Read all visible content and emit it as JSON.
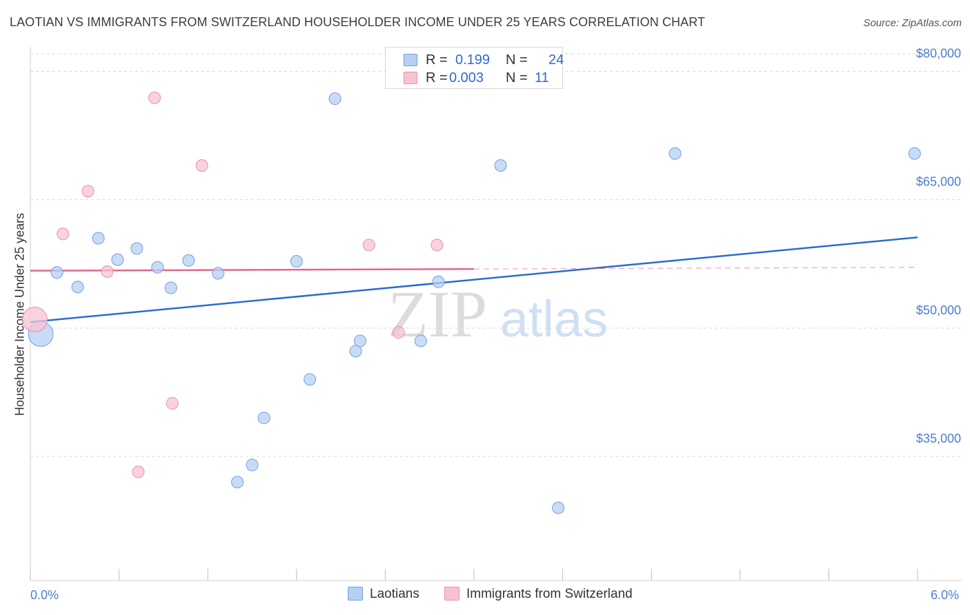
{
  "title": "LAOTIAN VS IMMIGRANTS FROM SWITZERLAND HOUSEHOLDER INCOME UNDER 25 YEARS CORRELATION CHART",
  "source": "Source: ZipAtlas.com",
  "watermark": {
    "zip": "ZIP",
    "atlas": "atlas"
  },
  "colors": {
    "blue_fill": "#b7d0f2",
    "blue_stroke": "#6f9fe0",
    "blue_line": "#2a6bd1",
    "pink_fill": "#f7c3d3",
    "pink_stroke": "#e88fab",
    "pink_line": "#e0678f",
    "axis_text": "#4a7fd1",
    "grid": "#d9d9d9"
  },
  "legend": {
    "rows": [
      {
        "r_label": "R =",
        "r_value": "0.199",
        "n_label": "N =",
        "n_value": "24"
      },
      {
        "r_label": "R =",
        "r_value": "0.003",
        "n_label": "N =",
        "n_value": "11"
      }
    ]
  },
  "bottom_legend": [
    "Laotians",
    "Immigrants from Switzerland"
  ],
  "x_axis_labels": {
    "min": "0.0%",
    "max": "6.0%"
  },
  "chart_data": {
    "type": "scatter",
    "title": "LAOTIAN VS IMMIGRANTS FROM SWITZERLAND HOUSEHOLDER INCOME UNDER 25 YEARS CORRELATION CHART",
    "xlabel": "",
    "ylabel": "Householder Income Under 25 years",
    "xlim": [
      0,
      6.0
    ],
    "ylim": [
      20500,
      83500
    ],
    "y_ticks": [
      35000,
      50000,
      65000,
      80000
    ],
    "y_tick_labels": [
      "$35,000",
      "$50,000",
      "$65,000",
      "$80,000"
    ],
    "x_tick_labels": [
      "0.0%",
      "6.0%"
    ],
    "grid": true,
    "legend_position": "top-center",
    "series": [
      {
        "name": "Laotians",
        "color": "#6f9fe0",
        "points": [
          {
            "x": 0.07,
            "y": 49300,
            "size": "large"
          },
          {
            "x": 0.18,
            "y": 56500
          },
          {
            "x": 0.32,
            "y": 54800
          },
          {
            "x": 0.46,
            "y": 60500
          },
          {
            "x": 0.59,
            "y": 58000
          },
          {
            "x": 0.72,
            "y": 59300
          },
          {
            "x": 0.86,
            "y": 57100
          },
          {
            "x": 0.95,
            "y": 54700
          },
          {
            "x": 1.07,
            "y": 57900
          },
          {
            "x": 1.27,
            "y": 56400
          },
          {
            "x": 1.4,
            "y": 32000
          },
          {
            "x": 1.5,
            "y": 34000
          },
          {
            "x": 1.58,
            "y": 39500
          },
          {
            "x": 1.8,
            "y": 57800
          },
          {
            "x": 1.89,
            "y": 44000
          },
          {
            "x": 2.06,
            "y": 76800
          },
          {
            "x": 2.2,
            "y": 47300
          },
          {
            "x": 2.23,
            "y": 48500
          },
          {
            "x": 2.64,
            "y": 48500
          },
          {
            "x": 2.76,
            "y": 55400
          },
          {
            "x": 3.18,
            "y": 69000
          },
          {
            "x": 3.57,
            "y": 29000
          },
          {
            "x": 4.36,
            "y": 70400
          },
          {
            "x": 5.98,
            "y": 70400
          }
        ],
        "trend": {
          "x": [
            0.0,
            6.0
          ],
          "y": [
            50700,
            60600
          ]
        }
      },
      {
        "name": "Immigrants from Switzerland",
        "color": "#e88fab",
        "points": [
          {
            "x": 0.03,
            "y": 51000,
            "size": "large"
          },
          {
            "x": 0.22,
            "y": 61000
          },
          {
            "x": 0.39,
            "y": 66000
          },
          {
            "x": 0.52,
            "y": 56600
          },
          {
            "x": 0.73,
            "y": 33200
          },
          {
            "x": 0.84,
            "y": 76900
          },
          {
            "x": 0.96,
            "y": 41200
          },
          {
            "x": 1.16,
            "y": 69000
          },
          {
            "x": 2.29,
            "y": 59700
          },
          {
            "x": 2.49,
            "y": 49500
          },
          {
            "x": 2.75,
            "y": 59700
          }
        ],
        "trend": {
          "x": [
            0.0,
            3.0
          ],
          "y": [
            56700,
            56900
          ]
        },
        "trend_extension": {
          "x": [
            3.0,
            6.0
          ],
          "y": [
            56900,
            57100
          ]
        }
      }
    ]
  }
}
